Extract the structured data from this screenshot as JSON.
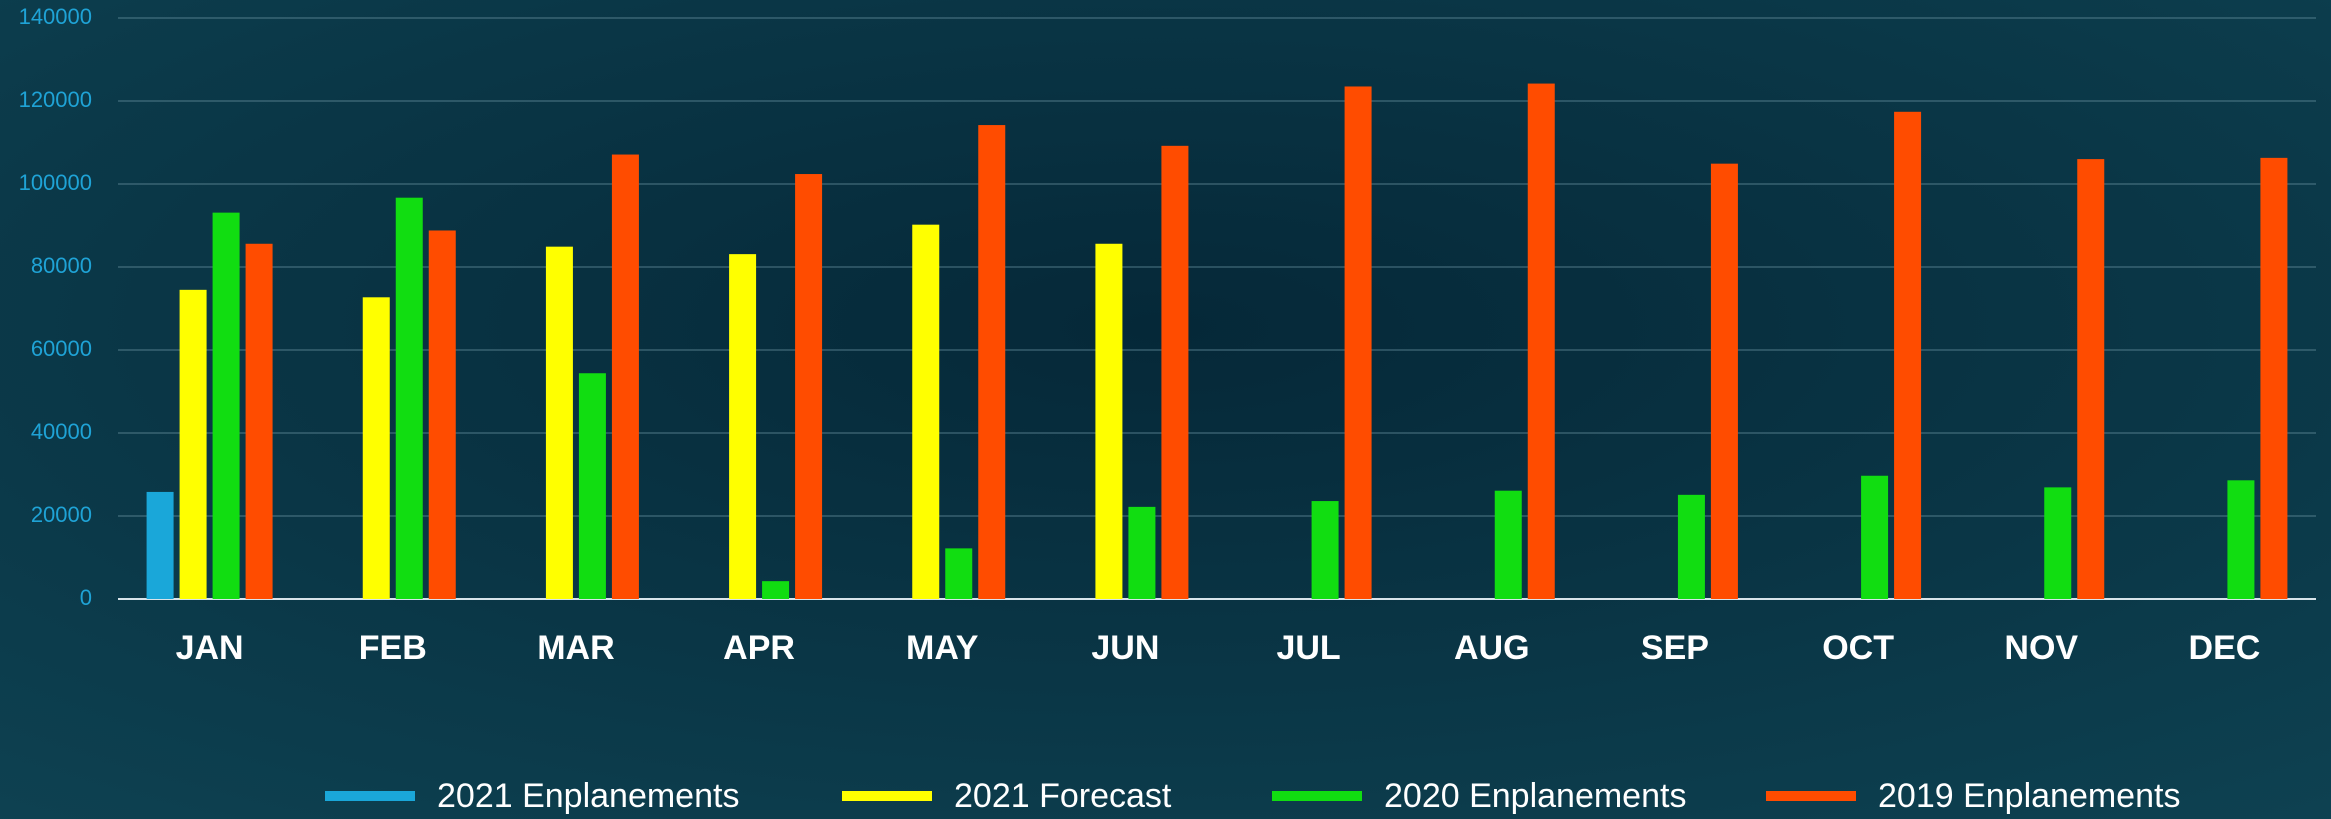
{
  "chart_data": {
    "type": "bar",
    "categories": [
      "JAN",
      "FEB",
      "MAR",
      "APR",
      "MAY",
      "JUN",
      "JUL",
      "AUG",
      "SEP",
      "OCT",
      "NOV",
      "DEC"
    ],
    "series": [
      {
        "name": "2021 Enplanements",
        "color": "#1aa7d9",
        "values": [
          25800,
          null,
          null,
          null,
          null,
          null,
          null,
          null,
          null,
          null,
          null,
          null
        ]
      },
      {
        "name": "2021 Forecast",
        "color": "#ffff00",
        "values": [
          74500,
          72700,
          84900,
          83100,
          90200,
          85600,
          null,
          null,
          null,
          null,
          null,
          null
        ]
      },
      {
        "name": "2020 Enplanements",
        "color": "#11dd11",
        "values": [
          93100,
          96700,
          54400,
          4300,
          12200,
          22200,
          23600,
          26100,
          25100,
          29700,
          26900,
          28600
        ]
      },
      {
        "name": "2019 Enplanements",
        "color": "#ff4c00",
        "values": [
          85600,
          88800,
          107100,
          102400,
          114200,
          109200,
          123500,
          124200,
          104900,
          117400,
          106000,
          106300
        ]
      }
    ],
    "ylim": [
      0,
      140000
    ],
    "yticks": [
      0,
      20000,
      40000,
      60000,
      80000,
      100000,
      120000,
      140000
    ],
    "grid": true,
    "legend": "bottom"
  }
}
